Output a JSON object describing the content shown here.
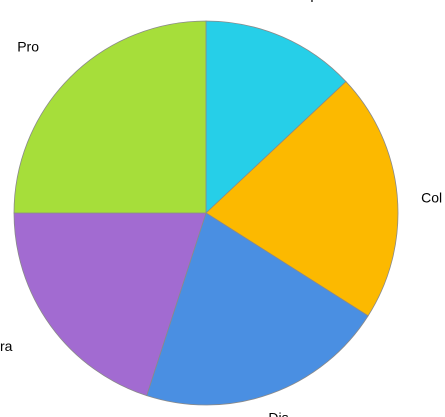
{
  "chart_data": {
    "type": "pie",
    "title": "",
    "start_angle": "12 o'clock, clockwise",
    "slices": [
      {
        "label": "Acq",
        "value": 13,
        "color": "#26cfe8"
      },
      {
        "label": "Col",
        "value": 21,
        "color": "#fcb900"
      },
      {
        "label": "Dis",
        "value": 21,
        "color": "#4a8fe2"
      },
      {
        "label": "Pra",
        "value": 20,
        "color": "#a26bd1"
      },
      {
        "label": "Pro",
        "value": 25,
        "color": "#a6de3a"
      }
    ],
    "legend": "none",
    "labels": "outside"
  }
}
